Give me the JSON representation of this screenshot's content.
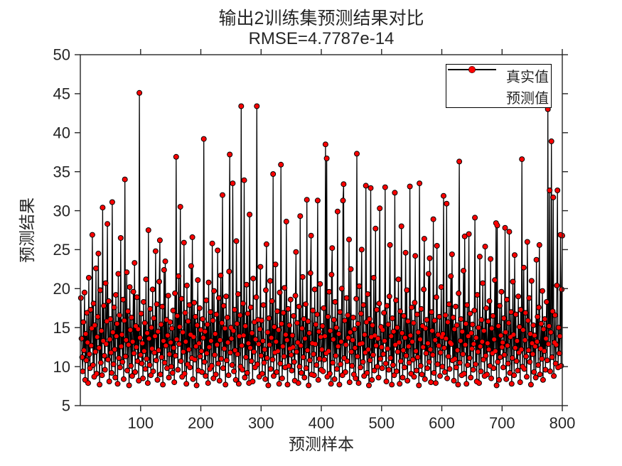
{
  "figure": {
    "title": "输出2训练集预测结果对比",
    "subtitle": "RMSE=4.7787e-14",
    "xlabel": "预测样本",
    "ylabel": "预测结果",
    "background_color": "#ffffff",
    "axis_color": "#262626",
    "text_color": "#262626"
  },
  "legend": {
    "position": "top-right",
    "items": [
      {
        "label": "真实值",
        "marker": "black-line-with-filled-circle",
        "color": "#000000"
      },
      {
        "label": "预测值",
        "marker": "red-filled-circle",
        "color": "#ff0000"
      }
    ]
  },
  "chart_data": {
    "type": "line",
    "title": "输出2训练集预测结果对比",
    "subtitle": "RMSE=4.7787e-14",
    "xlabel": "预测样本",
    "ylabel": "预测结果",
    "xlim": [
      0,
      800
    ],
    "ylim": [
      5,
      50
    ],
    "x_ticks": [
      100,
      200,
      300,
      400,
      500,
      600,
      700,
      800
    ],
    "y_ticks": [
      5,
      10,
      15,
      20,
      25,
      30,
      35,
      40,
      45,
      50
    ],
    "grid": false,
    "legend_position": "top-right",
    "x_start": 1,
    "x_step": 1,
    "n_points": 800,
    "series": [
      {
        "name": "真实值",
        "style": "line-with-markers",
        "line_color": "#000000",
        "marker_color": "#000000",
        "values": [
          18.8,
          13.6,
          11.2,
          9.4,
          15.7,
          12.1,
          19.5,
          8.3,
          14.2,
          10.8,
          16.9,
          13.1,
          7.9,
          21.4,
          11.6,
          9.8,
          17.3,
          12.7,
          14.9,
          26.9,
          10.2,
          18.1,
          8.7,
          15.3,
          11.9,
          22.6,
          9.1,
          13.8,
          16.4,
          24.5,
          12.4,
          7.7,
          19.8,
          10.5,
          14.6,
          8.9,
          30.4,
          13.3,
          17.8,
          11.4,
          9.6,
          20.7,
          12.9,
          15.8,
          28.3,
          10.9,
          18.4,
          8.1,
          13.5,
          16.1,
          11.8,
          9.2,
          31.1,
          14.4,
          10.3,
          17.6,
          12.2,
          8.6,
          19.2,
          13.9,
          15.5,
          7.8,
          21.9,
          11.1,
          16.6,
          9.9,
          26.5,
          12.6,
          14.1,
          10.6,
          18.6,
          8.4,
          15.9,
          34.0,
          11.3,
          13.4,
          22.1,
          9.5,
          17.1,
          12.8,
          7.6,
          20.2,
          14.7,
          10.1,
          16.3,
          8.8,
          13.2,
          19.6,
          11.7,
          23.3,
          9.3,
          15.2,
          12.5,
          18.9,
          10.7,
          14.8,
          8.2,
          45.1,
          13.7,
          11.5,
          16.8,
          10.4,
          13.0,
          8.5,
          18.3,
          12.0,
          15.6,
          9.7,
          21.2,
          11.0,
          14.3,
          7.9,
          27.5,
          13.6,
          10.2,
          17.4,
          8.9,
          15.0,
          12.3,
          19.9,
          9.4,
          16.2,
          11.8,
          13.9,
          24.8,
          10.8,
          18.0,
          8.3,
          14.5,
          12.1,
          20.9,
          26.2,
          9.0,
          15.4,
          11.2,
          17.7,
          7.7,
          13.3,
          22.4,
          10.5,
          23.5,
          12.7,
          16.0,
          9.8,
          14.0,
          19.1,
          8.6,
          11.6,
          15.7,
          13.1,
          10.0,
          14.9,
          9.2,
          17.2,
          12.4,
          8.0,
          19.4,
          11.4,
          36.9,
          13.5,
          16.5,
          9.6,
          21.6,
          12.9,
          15.1,
          30.5,
          10.7,
          18.7,
          8.7,
          14.4,
          11.9,
          25.9,
          9.1,
          16.9,
          13.2,
          7.8,
          20.4,
          10.3,
          15.8,
          12.2,
          17.9,
          9.9,
          14.1,
          22.9,
          11.1,
          26.6,
          8.4,
          13.8,
          18.2,
          10.9,
          16.4,
          12.6,
          7.6,
          15.3,
          21.1,
          9.5,
          13.0,
          17.5,
          11.3,
          14.7,
          12.0,
          9.3,
          16.1,
          13.7,
          39.2,
          10.6,
          14.5,
          8.8,
          18.5,
          11.7,
          15.4,
          7.9,
          20.8,
          12.5,
          9.7,
          17.0,
          13.3,
          10.1,
          25.8,
          15.9,
          8.5,
          19.7,
          11.5,
          14.2,
          9.0,
          16.7,
          12.8,
          24.9,
          10.4,
          18.8,
          8.2,
          13.4,
          21.7,
          11.0,
          15.6,
          32.0,
          9.8,
          17.8,
          12.3,
          14.9,
          7.7,
          19.0,
          10.8,
          16.3,
          13.1,
          8.9,
          22.2,
          37.2,
          11.8,
          15.0,
          13.6,
          10.2,
          33.5,
          14.6,
          9.4,
          17.3,
          12.1,
          8.3,
          26.1,
          15.5,
          11.6,
          19.3,
          7.8,
          13.9,
          16.6,
          10.0,
          43.4,
          12.7,
          9.6,
          18.1,
          14.0,
          33.9,
          8.6,
          15.2,
          11.2,
          20.5,
          9.2,
          16.8,
          13.0,
          7.9,
          29.5,
          12.4,
          17.6,
          10.7,
          14.3,
          8.1,
          21.3,
          11.9,
          15.7,
          9.9,
          13.5,
          18.9,
          43.4,
          10.3,
          16.0,
          12.9,
          8.7,
          14.8,
          22.8,
          11.4,
          15.9,
          9.1,
          13.3,
          17.9,
          10.5,
          12.2,
          8.4,
          19.8,
          25.7,
          11.1,
          14.4,
          7.6,
          16.2,
          12.8,
          21.0,
          9.7,
          13.7,
          18.4,
          10.9,
          34.7,
          8.8,
          15.1,
          11.8,
          23.1,
          13.2,
          9.3,
          17.1,
          12.0,
          14.7,
          7.8,
          19.5,
          10.4,
          35.9,
          15.5,
          8.5,
          12.6,
          16.9,
          11.3,
          20.1,
          9.9,
          14.1,
          28.6,
          13.4,
          7.7,
          17.4,
          10.1,
          15.3,
          12.3,
          18.6,
          11.5,
          9.5,
          14.0,
          12.5,
          16.5,
          10.6,
          8.2,
          19.1,
          24.7,
          11.9,
          15.6,
          13.1,
          7.9,
          17.7,
          10.0,
          29.3,
          12.7,
          9.2,
          14.9,
          21.5,
          11.2,
          16.1,
          8.6,
          13.6,
          18.0,
          9.8,
          31.4,
          12.1,
          15.8,
          7.6,
          14.3,
          10.8,
          22.0,
          26.8,
          9.0,
          13.0,
          17.2,
          11.6,
          8.9,
          19.9,
          12.9,
          15.4,
          10.2,
          16.7,
          31.3,
          8.3,
          14.5,
          11.0,
          20.6,
          13.8,
          9.6,
          12.2,
          15.2,
          9.4,
          17.5,
          10.9,
          13.9,
          38.5,
          11.7,
          36.7,
          8.7,
          16.4,
          12.0,
          19.6,
          9.1,
          14.6,
          7.8,
          21.8,
          25.2,
          10.5,
          13.5,
          16.0,
          8.4,
          18.3,
          11.4,
          15.0,
          9.7,
          29.9,
          12.6,
          14.2,
          7.7,
          17.0,
          10.3,
          13.2,
          20.0,
          8.9,
          31.3,
          33.4,
          11.1,
          15.9,
          9.3,
          12.8,
          18.8,
          10.7,
          16.6,
          13.7,
          26.3,
          8.0,
          14.4,
          22.5,
          11.9,
          10.1,
          13.4,
          16.3,
          9.0,
          14.8,
          12.4,
          8.5,
          18.7,
          37.3,
          11.3,
          15.5,
          7.9,
          20.3,
          12.9,
          9.9,
          16.8,
          25.0,
          13.0,
          10.6,
          17.9,
          8.8,
          14.1,
          11.8,
          33.2,
          15.7,
          9.2,
          19.3,
          12.2,
          7.6,
          16.1,
          10.8,
          32.9,
          13.8,
          8.3,
          15.3,
          11.5,
          21.4,
          9.5,
          14.0,
          27.7,
          12.7,
          17.3,
          10.0,
          13.6,
          8.6,
          18.1,
          30.3,
          11.0,
          15.1,
          12.5,
          9.8,
          14.7,
          11.6,
          16.9,
          13.3,
          33.0,
          10.4,
          8.1,
          17.8,
          12.3,
          15.4,
          9.6,
          19.0,
          25.6,
          11.1,
          13.9,
          7.7,
          16.2,
          10.2,
          14.5,
          8.9,
          32.3,
          12.8,
          18.5,
          9.4,
          15.0,
          11.9,
          21.2,
          13.1,
          7.8,
          17.1,
          10.7,
          28.0,
          14.3,
          8.6,
          12.1,
          16.5,
          9.9,
          13.7,
          24.6,
          11.4,
          19.8,
          8.2,
          15.8,
          12.6,
          10.5,
          33.1,
          14.0,
          9.1,
          17.6,
          13.2,
          10.9,
          15.6,
          8.7,
          18.2,
          24.2,
          12.0,
          9.5,
          16.7,
          11.2,
          14.4,
          7.6,
          33.5,
          13.5,
          10.1,
          17.4,
          9.0,
          15.2,
          12.5,
          19.9,
          26.4,
          8.4,
          14.9,
          11.7,
          16.0,
          9.8,
          13.0,
          21.9,
          10.6,
          23.9,
          12.2,
          8.0,
          17.0,
          14.6,
          11.5,
          28.9,
          9.2,
          15.9,
          13.4,
          7.9,
          18.9,
          25.5,
          10.3,
          14.1,
          12.7,
          16.4,
          8.8,
          11.8,
          20.2,
          13.8,
          10.0,
          14.2,
          31.9,
          12.4,
          9.3,
          16.6,
          13.6,
          30.9,
          8.5,
          15.7,
          11.3,
          18.0,
          9.7,
          13.1,
          21.6,
          12.9,
          24.4,
          10.8,
          16.3,
          8.2,
          14.8,
          11.0,
          17.7,
          9.9,
          15.3,
          12.1,
          7.7,
          19.4,
          36.3,
          10.5,
          13.3,
          16.1,
          8.9,
          14.5,
          11.6,
          22.3,
          9.1,
          26.7,
          12.8,
          15.5,
          7.8,
          17.9,
          10.2,
          13.9,
          27.0,
          11.1,
          16.8,
          8.6,
          14.3,
          12.3,
          15.4,
          9.6,
          12.9,
          17.2,
          29.1,
          10.3,
          13.7,
          8.1,
          19.2,
          11.9,
          15.0,
          7.9,
          24.1,
          12.6,
          9.4,
          16.0,
          13.2,
          20.7,
          10.9,
          14.6,
          8.8,
          25.4,
          11.4,
          17.5,
          9.0,
          13.0,
          15.8,
          12.2,
          18.4,
          10.1,
          23.8,
          8.5,
          14.9,
          11.7,
          16.5,
          9.8,
          13.5,
          21.1,
          12.0,
          28.4,
          7.6,
          28.1,
          10.6,
          15.2,
          8.3,
          17.8,
          11.2,
          14.0,
          19.6,
          12.5,
          13.1,
          9.9,
          16.2,
          11.5,
          27.8,
          14.4,
          8.4,
          18.6,
          12.7,
          10.4,
          15.6,
          27.3,
          9.2,
          13.8,
          17.0,
          7.8,
          11.1,
          20.9,
          14.1,
          8.9,
          24.3,
          12.4,
          16.7,
          10.7,
          13.3,
          9.5,
          19.0,
          11.8,
          15.1,
          8.0,
          17.3,
          12.2,
          36.6,
          10.0,
          14.7,
          22.7,
          9.7,
          13.4,
          16.9,
          11.3,
          8.7,
          26.0,
          15.9,
          12.1,
          18.8,
          10.6,
          14.2,
          7.7,
          21.0,
          13.0,
          11.6,
          15.3,
          9.3,
          14.0,
          12.6,
          8.6,
          23.7,
          13.2,
          16.4,
          10.2,
          17.6,
          25.6,
          9.0,
          12.3,
          15.5,
          11.0,
          19.7,
          8.3,
          14.8,
          12.0,
          16.1,
          9.6,
          13.6,
          18.3,
          10.8,
          43.0,
          12.9,
          15.2,
          32.6,
          9.4,
          14.4,
          38.9,
          11.2,
          17.1,
          31.7,
          8.8,
          13.1,
          16.6,
          10.4,
          12.8,
          20.4,
          32.6,
          9.9,
          15.0,
          11.7,
          13.9,
          26.9,
          10.1,
          19.9,
          26.8
        ]
      },
      {
        "name": "预测值",
        "style": "scatter",
        "marker_color": "#ff0000",
        "values_equal_to_series": "真实值",
        "note": "predictions coincide with true values (RMSE=4.7787e-14)"
      }
    ]
  }
}
